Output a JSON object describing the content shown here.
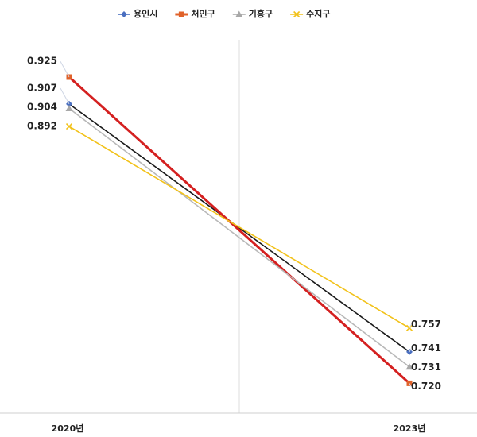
{
  "chart_data": {
    "type": "line",
    "categories": [
      "2020년",
      "2023년"
    ],
    "series": [
      {
        "name": "용인시",
        "color": "#4a6fc0",
        "line_color": "#1a1a1a",
        "marker": "diamond",
        "values": [
          0.907,
          0.741
        ],
        "value_labels": [
          "0.907",
          "0.741"
        ]
      },
      {
        "name": "처인구",
        "color": "#e0622a",
        "line_color": "#d42020",
        "marker": "square",
        "values": [
          0.925,
          0.72
        ],
        "value_labels": [
          "0.925",
          "0.720"
        ]
      },
      {
        "name": "기흥구",
        "color": "#a8a8a8",
        "line_color": "#b8b8b8",
        "marker": "triangle",
        "values": [
          0.904,
          0.731
        ],
        "value_labels": [
          "0.904",
          "0.731"
        ]
      },
      {
        "name": "수지구",
        "color": "#f2c21a",
        "line_color": "#f2c21a",
        "marker": "x",
        "values": [
          0.892,
          0.757
        ],
        "value_labels": [
          "0.892",
          "0.757"
        ]
      }
    ],
    "ylim": [
      0.7,
      0.95
    ],
    "legend": "top"
  }
}
